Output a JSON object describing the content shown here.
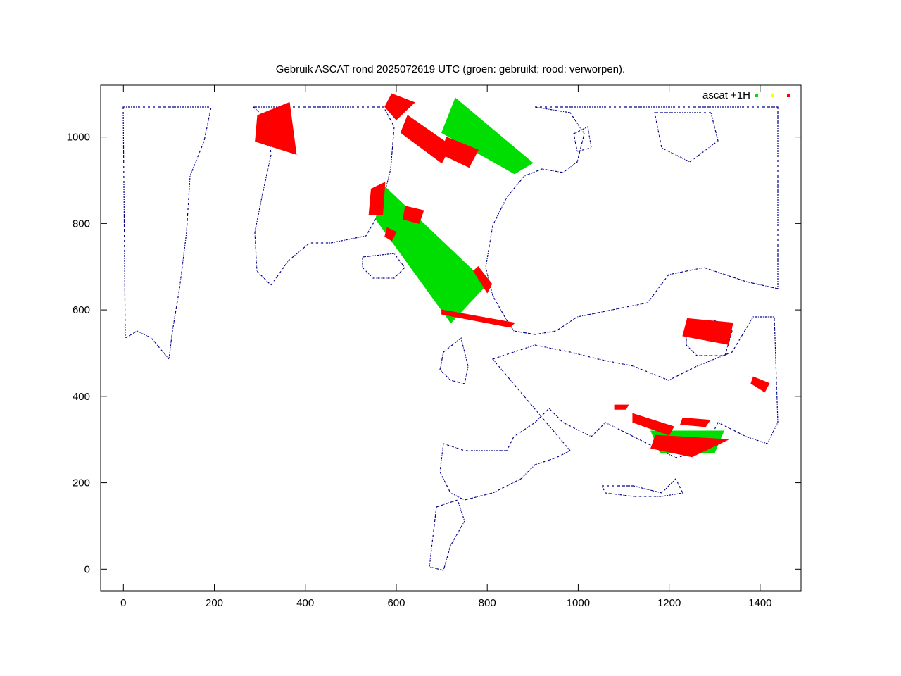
{
  "chart_data": {
    "type": "scatter",
    "title": "Gebruik ASCAT rond 2025072619 UTC (groen: gebruikt; rood: verworpen).",
    "xlabel": "",
    "ylabel": "",
    "xlim": [
      -50,
      1490
    ],
    "ylim": [
      -50,
      1120
    ],
    "xticks": [
      "0",
      "200",
      "400",
      "600",
      "800",
      "1000",
      "1200",
      "1400"
    ],
    "yticks": [
      "0",
      "200",
      "400",
      "600",
      "800",
      "1000"
    ],
    "grid": false,
    "legend_position": "top-right",
    "legend": {
      "label": "ascat +1H"
    },
    "colors": {
      "coastline": "#00008b",
      "used": "#00dd00",
      "neutral": "#ffff00",
      "rejected": "#ff0000"
    },
    "series": [
      {
        "name": "used",
        "color": "#00dd00",
        "regions": [
          {
            "polygon": [
              [
                570,
                890
              ],
              [
                800,
                660
              ],
              [
                720,
                570
              ],
              [
                555,
                810
              ]
            ]
          },
          {
            "polygon": [
              [
                730,
                1090
              ],
              [
                900,
                940
              ],
              [
                860,
                915
              ],
              [
                700,
                1010
              ]
            ]
          },
          {
            "polygon": [
              [
                315,
                1030
              ],
              [
                355,
                1020
              ],
              [
                350,
                990
              ],
              [
                320,
                1000
              ]
            ]
          },
          {
            "polygon": [
              [
                1270,
                555
              ],
              [
                1340,
                570
              ],
              [
                1320,
                540
              ],
              [
                1265,
                540
              ]
            ]
          },
          {
            "polygon": [
              [
                1160,
                320
              ],
              [
                1320,
                320
              ],
              [
                1300,
                270
              ],
              [
                1180,
                270
              ]
            ]
          }
        ]
      },
      {
        "name": "rejected",
        "color": "#ff0000",
        "regions": [
          {
            "polygon": [
              [
                295,
                1050
              ],
              [
                365,
                1080
              ],
              [
                380,
                960
              ],
              [
                290,
                990
              ]
            ]
          },
          {
            "polygon": [
              [
                590,
                1100
              ],
              [
                640,
                1080
              ],
              [
                600,
                1040
              ],
              [
                575,
                1070
              ]
            ]
          },
          {
            "polygon": [
              [
                625,
                1050
              ],
              [
                720,
                980
              ],
              [
                700,
                940
              ],
              [
                610,
                1010
              ]
            ]
          },
          {
            "polygon": [
              [
                710,
                1000
              ],
              [
                780,
                970
              ],
              [
                760,
                930
              ],
              [
                700,
                960
              ]
            ]
          },
          {
            "polygon": [
              [
                545,
                880
              ],
              [
                575,
                895
              ],
              [
                570,
                820
              ],
              [
                540,
                820
              ]
            ]
          },
          {
            "polygon": [
              [
                620,
                840
              ],
              [
                660,
                830
              ],
              [
                650,
                800
              ],
              [
                615,
                810
              ]
            ]
          },
          {
            "polygon": [
              [
                580,
                790
              ],
              [
                600,
                780
              ],
              [
                590,
                760
              ],
              [
                575,
                770
              ]
            ]
          },
          {
            "polygon": [
              [
                780,
                700
              ],
              [
                810,
                660
              ],
              [
                800,
                640
              ],
              [
                770,
                690
              ]
            ]
          },
          {
            "polygon": [
              [
                700,
                600
              ],
              [
                860,
                570
              ],
              [
                850,
                560
              ],
              [
                700,
                590
              ]
            ]
          },
          {
            "polygon": [
              [
                1240,
                580
              ],
              [
                1340,
                570
              ],
              [
                1330,
                520
              ],
              [
                1230,
                540
              ]
            ]
          },
          {
            "polygon": [
              [
                1385,
                445
              ],
              [
                1420,
                430
              ],
              [
                1410,
                410
              ],
              [
                1380,
                430
              ]
            ]
          },
          {
            "polygon": [
              [
                1080,
                380
              ],
              [
                1110,
                380
              ],
              [
                1105,
                370
              ],
              [
                1080,
                370
              ]
            ]
          },
          {
            "polygon": [
              [
                1120,
                360
              ],
              [
                1210,
                330
              ],
              [
                1200,
                310
              ],
              [
                1120,
                340
              ]
            ]
          },
          {
            "polygon": [
              [
                1170,
                310
              ],
              [
                1330,
                300
              ],
              [
                1250,
                260
              ],
              [
                1160,
                280
              ]
            ]
          },
          {
            "polygon": [
              [
                1230,
                350
              ],
              [
                1290,
                345
              ],
              [
                1280,
                330
              ],
              [
                1225,
                335
              ]
            ]
          }
        ]
      }
    ]
  }
}
